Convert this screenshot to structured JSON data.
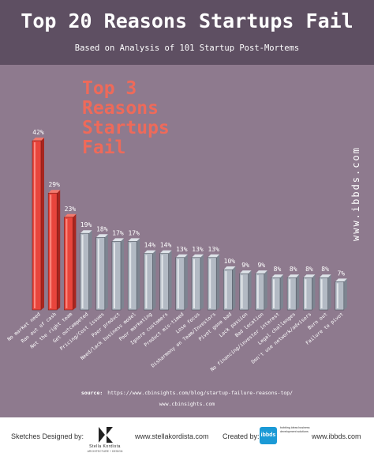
{
  "title": "Top 20 Reasons Startups Fail",
  "subtitle": "Based on Analysis of 101 Startup Post-Mortems",
  "callout_lines": [
    "Top 3",
    "Reasons",
    "Startups",
    "Fail"
  ],
  "side_url": "www.ibbds.com",
  "source": {
    "label": "source:",
    "url": "https://www.cbinsights.com/blog/startup-failure-reasons-top/",
    "site": "www.cbinsights.com"
  },
  "footer": {
    "sketches_label": "Sketches Designed by:",
    "stella_logo_name": "Stella Kordista",
    "stella_logo_sub": "ARCHITECTURE + DESIGN",
    "stella_url": "www.stellakordista.com",
    "created_label": "Created by:",
    "ibbds_logo_text": "ibbds",
    "ibbds_tagline": "bobbing ideas business development solutions",
    "ibbds_url": "www.ibbds.com"
  },
  "colors": {
    "background": "#8e7a8e",
    "header": "#5e4f62",
    "highlight": "#e8453c",
    "bar": "#b3bac4",
    "callout": "#ee6a5a"
  },
  "chart_data": {
    "type": "bar",
    "title": "Top 20 Reasons Startups Fail",
    "categories": [
      "No market need",
      "Ran out of cash",
      "Not the right team",
      "Get outcompeted",
      "Pricing/Cost issues",
      "Poor product",
      "Need/lack business model",
      "Poor marketing",
      "Ignore customers",
      "Product mis-timed",
      "Lose focus",
      "Disharmony on Team/Investors",
      "Pivot gone bad",
      "Lack passion",
      "Bad location",
      "No financing/investor interest",
      "Legal challenges",
      "Don't use network/advisors",
      "Burn out",
      "Failure to pivot"
    ],
    "values": [
      42,
      29,
      23,
      19,
      18,
      17,
      17,
      14,
      14,
      13,
      13,
      13,
      10,
      9,
      9,
      8,
      8,
      8,
      8,
      7
    ],
    "value_labels": [
      "42%",
      "29%",
      "23%",
      "19%",
      "18%",
      "17%",
      "17%",
      "14%",
      "14%",
      "13%",
      "13%",
      "13%",
      "10%",
      "9%",
      "9%",
      "8%",
      "8%",
      "8%",
      "8%",
      "7%"
    ],
    "highlight_count": 3,
    "ylim": [
      0,
      42
    ]
  }
}
